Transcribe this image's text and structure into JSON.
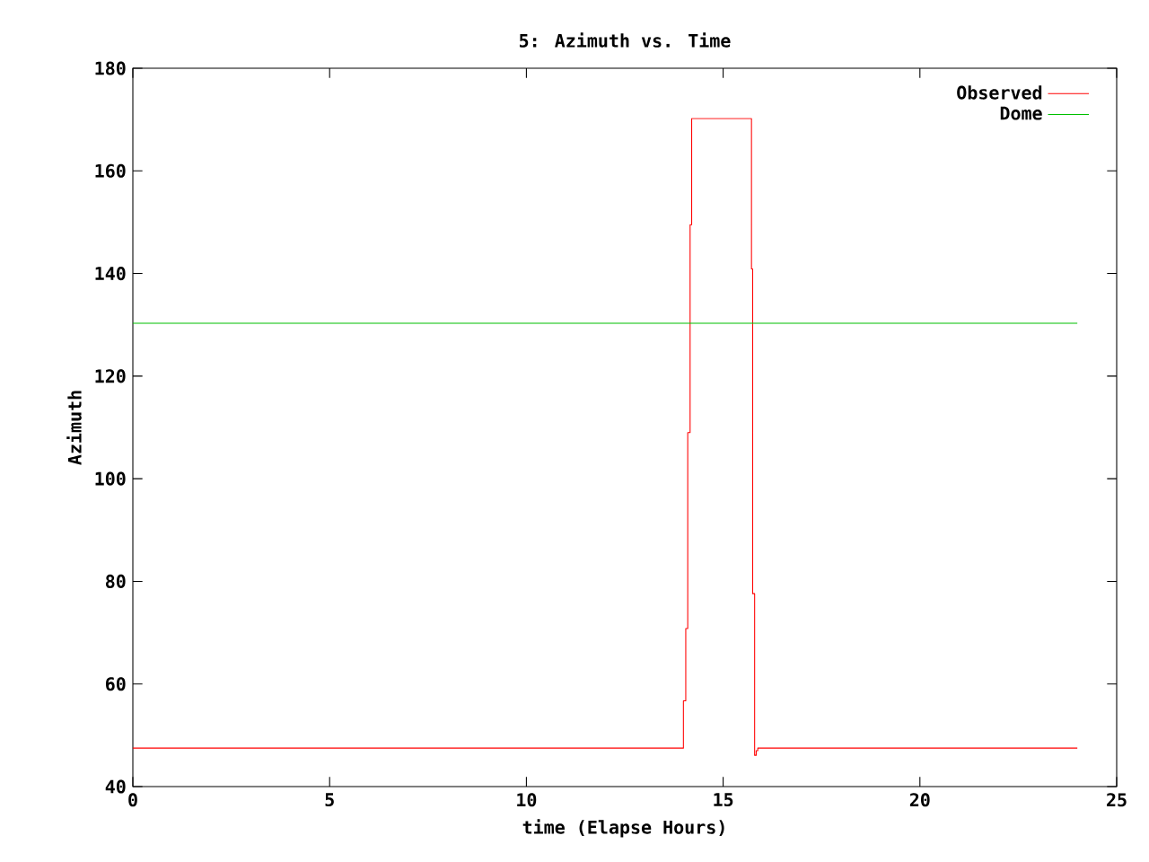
{
  "chart_data": {
    "type": "line",
    "title": "5: Azimuth vs. Time",
    "xlabel": "time (Elapse Hours)",
    "ylabel": "Azimuth",
    "xlim": [
      0,
      25
    ],
    "ylim": [
      40,
      180
    ],
    "xticks": [
      0,
      5,
      10,
      15,
      20,
      25
    ],
    "yticks": [
      40,
      60,
      80,
      100,
      120,
      140,
      160,
      180
    ],
    "legend": "top right",
    "grid": false,
    "series": [
      {
        "name": "Observed",
        "type": "step",
        "color": "#ff0000",
        "x": [
          0,
          13.99,
          14.05,
          14.1,
          14.16,
          14.2,
          15.72,
          15.75,
          15.8,
          15.84,
          15.88,
          24
        ],
        "values": [
          47.5,
          56.7,
          70.8,
          109,
          149.5,
          170.2,
          140.9,
          77.6,
          46.1,
          47,
          47.5,
          47.5
        ]
      },
      {
        "name": "Dome",
        "color": "#00c000",
        "x": [
          0,
          24
        ],
        "values": [
          130.3,
          130.3
        ]
      }
    ]
  }
}
